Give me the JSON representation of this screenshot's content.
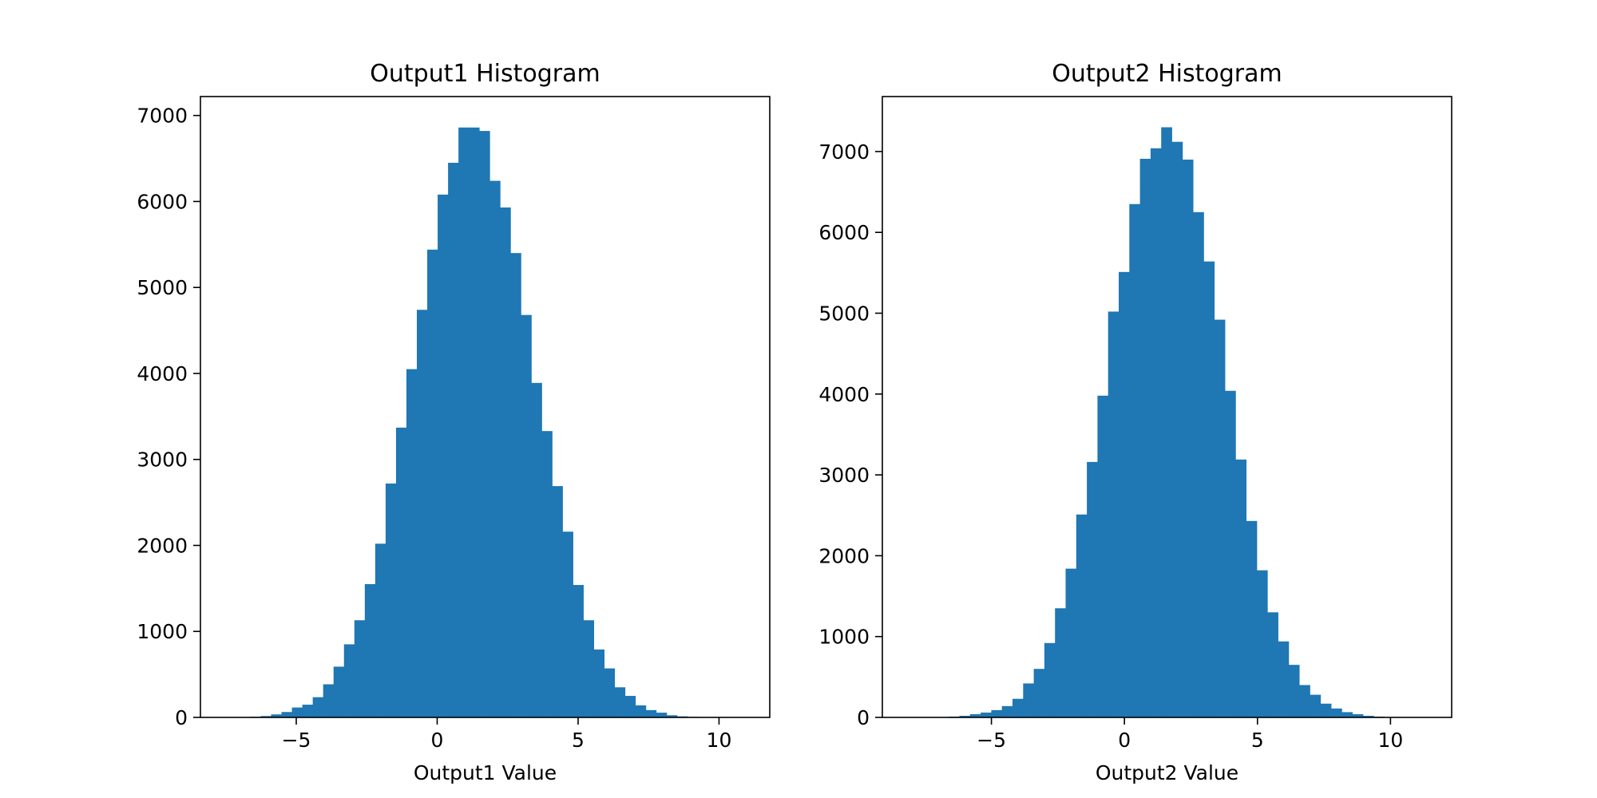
{
  "chart_data": [
    {
      "type": "bar",
      "title": "Output1 Histogram",
      "xlabel": "Output1 Value",
      "ylabel": "",
      "xlim": [
        -8.4,
        11.8
      ],
      "ylim": [
        0,
        7220
      ],
      "xticks": [
        -5,
        0,
        5,
        10
      ],
      "yticks": [
        0,
        1000,
        2000,
        3000,
        4000,
        5000,
        6000,
        7000
      ],
      "bin_start": -7.0,
      "bin_width": 0.3693,
      "values": [
        3,
        8,
        16,
        35,
        63,
        115,
        148,
        235,
        385,
        590,
        850,
        1130,
        1550,
        2020,
        2720,
        3370,
        4050,
        4740,
        5440,
        6080,
        6450,
        6860,
        6860,
        6820,
        6240,
        5930,
        5400,
        4680,
        3890,
        3330,
        2690,
        2160,
        1540,
        1130,
        790,
        570,
        350,
        250,
        140,
        85,
        55,
        25,
        12,
        6,
        3,
        1,
        1,
        1,
        0,
        0
      ],
      "color": "#1f77b4",
      "grid": false
    },
    {
      "type": "bar",
      "title": "Output2 Histogram",
      "xlabel": "Output2 Value",
      "ylabel": "",
      "xlim": [
        -9.1,
        12.3
      ],
      "ylim": [
        0,
        7680
      ],
      "xticks": [
        -5,
        0,
        5,
        10
      ],
      "yticks": [
        0,
        1000,
        2000,
        3000,
        4000,
        5000,
        6000,
        7000
      ],
      "bin_start": -7.8,
      "bin_width": 0.3992,
      "values": [
        1,
        2,
        4,
        10,
        20,
        40,
        60,
        90,
        140,
        230,
        420,
        600,
        920,
        1350,
        1840,
        2510,
        3160,
        3980,
        5020,
        5510,
        6350,
        6910,
        7040,
        7300,
        7120,
        6900,
        6250,
        5640,
        4920,
        4040,
        3190,
        2430,
        1820,
        1300,
        940,
        650,
        400,
        280,
        170,
        110,
        65,
        40,
        20,
        10,
        5,
        3,
        1,
        1,
        1,
        0
      ],
      "color": "#1f77b4",
      "grid": false
    }
  ]
}
